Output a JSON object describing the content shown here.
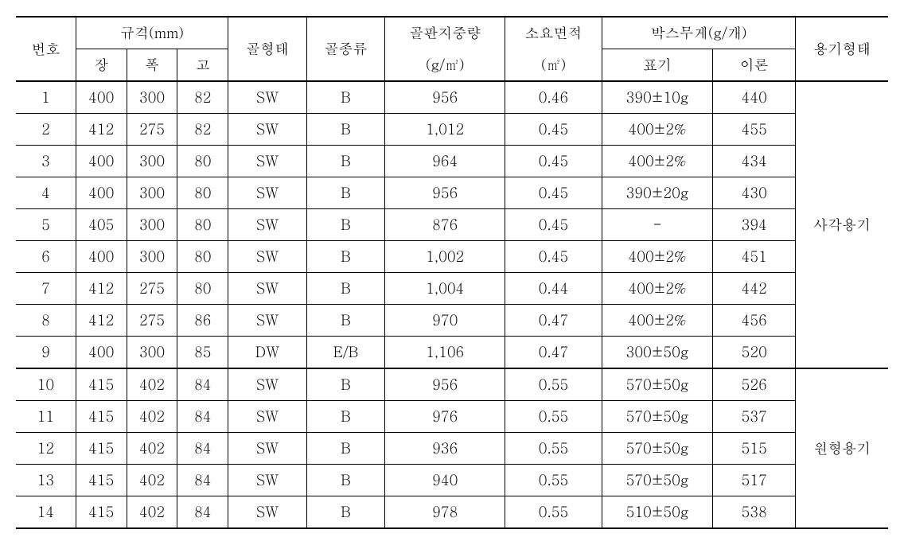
{
  "headers": {
    "num": "번호",
    "spec": "규격(mm)",
    "spec_l": "장",
    "spec_w": "폭",
    "spec_h": "고",
    "flute_form": "골형태",
    "flute_type": "골종류",
    "board_weight": "골판지중량",
    "board_weight_unit": "(g/㎡)",
    "req_area": "소요면적",
    "req_area_unit": "(㎡)",
    "box_weight": "박스무게(g/개)",
    "box_label": "표기",
    "box_theory": "이론",
    "container": "용기형태"
  },
  "group1_label": "사각용기",
  "group2_label": "원형용기",
  "rows1": [
    {
      "n": "1",
      "l": "400",
      "w": "300",
      "h": "82",
      "ff": "SW",
      "ft": "B",
      "bw": "956",
      "ra": "0.46",
      "blab": "390±10g",
      "bth": "440"
    },
    {
      "n": "2",
      "l": "412",
      "w": "275",
      "h": "82",
      "ff": "SW",
      "ft": "B",
      "bw": "1,012",
      "ra": "0.45",
      "blab": "400±2%",
      "bth": "455"
    },
    {
      "n": "3",
      "l": "400",
      "w": "300",
      "h": "80",
      "ff": "SW",
      "ft": "B",
      "bw": "964",
      "ra": "0.45",
      "blab": "400±2%",
      "bth": "434"
    },
    {
      "n": "4",
      "l": "400",
      "w": "300",
      "h": "80",
      "ff": "SW",
      "ft": "B",
      "bw": "956",
      "ra": "0.45",
      "blab": "390±20g",
      "bth": "430"
    },
    {
      "n": "5",
      "l": "405",
      "w": "300",
      "h": "80",
      "ff": "SW",
      "ft": "B",
      "bw": "876",
      "ra": "0.45",
      "blab": "-",
      "bth": "394"
    },
    {
      "n": "6",
      "l": "400",
      "w": "300",
      "h": "80",
      "ff": "SW",
      "ft": "B",
      "bw": "1,002",
      "ra": "0.45",
      "blab": "400±2%",
      "bth": "451"
    },
    {
      "n": "7",
      "l": "412",
      "w": "275",
      "h": "80",
      "ff": "SW",
      "ft": "B",
      "bw": "1,004",
      "ra": "0.44",
      "blab": "400±2%",
      "bth": "442"
    },
    {
      "n": "8",
      "l": "412",
      "w": "275",
      "h": "86",
      "ff": "SW",
      "ft": "B",
      "bw": "970",
      "ra": "0.47",
      "blab": "400±2%",
      "bth": "456"
    },
    {
      "n": "9",
      "l": "400",
      "w": "300",
      "h": "85",
      "ff": "DW",
      "ft": "E/B",
      "bw": "1,106",
      "ra": "0.47",
      "blab": "300±50g",
      "bth": "520"
    }
  ],
  "rows2": [
    {
      "n": "10",
      "l": "415",
      "w": "402",
      "h": "84",
      "ff": "SW",
      "ft": "B",
      "bw": "956",
      "ra": "0.55",
      "blab": "570±50g",
      "bth": "526"
    },
    {
      "n": "11",
      "l": "415",
      "w": "402",
      "h": "84",
      "ff": "SW",
      "ft": "B",
      "bw": "976",
      "ra": "0.55",
      "blab": "570±50g",
      "bth": "537"
    },
    {
      "n": "12",
      "l": "415",
      "w": "402",
      "h": "84",
      "ff": "SW",
      "ft": "B",
      "bw": "936",
      "ra": "0.55",
      "blab": "570±50g",
      "bth": "515"
    },
    {
      "n": "13",
      "l": "415",
      "w": "402",
      "h": "84",
      "ff": "SW",
      "ft": "B",
      "bw": "940",
      "ra": "0.55",
      "blab": "570±50g",
      "bth": "517"
    },
    {
      "n": "14",
      "l": "415",
      "w": "402",
      "h": "84",
      "ff": "SW",
      "ft": "B",
      "bw": "978",
      "ra": "0.55",
      "blab": "510±50g",
      "bth": "538"
    }
  ]
}
